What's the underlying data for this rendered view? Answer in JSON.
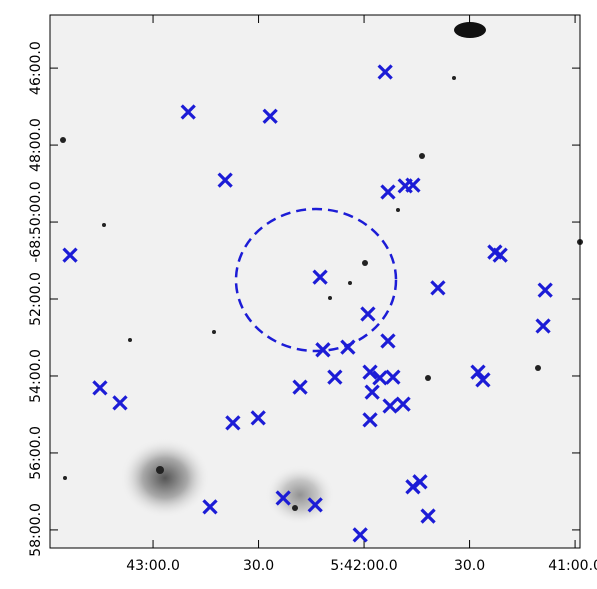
{
  "chart_data": {
    "type": "scatter",
    "marker": "x",
    "color": "#1c1cd6",
    "x": [
      20514.0,
      20570.0,
      20546.7,
      20559.5,
      20513.2,
      20508.3,
      20506.1,
      20603.6,
      20482.8,
      20481.3,
      20532.5,
      20499.0,
      20468.5,
      20518.9,
      20469.1,
      20513.2,
      20531.7,
      20524.6,
      20528.3,
      20518.3,
      20515.5,
      20511.8,
      20538.2,
      20517.7,
      20595.1,
      20487.6,
      20486.2,
      20589.4,
      20512.6,
      20508.9,
      20518.3,
      20550.1,
      20557.3,
      20506.1,
      20504.1,
      20543.0,
      20533.9,
      20563.8,
      20501.8,
      20521.1
    ],
    "values": [
      -46.1,
      -47.14,
      -47.25,
      -48.91,
      -49.22,
      -49.06,
      -49.04,
      -50.86,
      -50.78,
      -50.86,
      -51.43,
      -51.71,
      -51.77,
      -52.39,
      -52.7,
      -53.09,
      -53.32,
      -53.25,
      -54.03,
      -53.9,
      -54.05,
      -54.03,
      -54.29,
      -54.42,
      -54.31,
      -53.9,
      -54.1,
      -54.7,
      -54.78,
      -54.73,
      -55.14,
      -55.09,
      -55.22,
      -56.88,
      -56.75,
      -57.17,
      -57.35,
      -57.4,
      -57.64,
      -58.13
    ],
    "xlim": [
      20609.3,
      20458.6
    ],
    "ylim": [
      -58.47,
      -44.62
    ],
    "xticks": [
      {
        "value": 20580,
        "label": "43:00.0"
      },
      {
        "value": 20550,
        "label": "30.0"
      },
      {
        "value": 20520,
        "label": "5:42:00.0"
      },
      {
        "value": 20490,
        "label": "30.0"
      },
      {
        "value": 20460,
        "label": "41:00.0"
      }
    ],
    "yticks": [
      {
        "value": -46,
        "label": "46:00.0"
      },
      {
        "value": -48,
        "label": "48:00.0"
      },
      {
        "value": -50,
        "label": "-68:50:00.0"
      },
      {
        "value": -52,
        "label": "52:00.0"
      },
      {
        "value": -54,
        "label": "54:00.0"
      },
      {
        "value": -56,
        "label": "56:00.0"
      },
      {
        "value": -58,
        "label": "58:00.0"
      }
    ]
  }
}
